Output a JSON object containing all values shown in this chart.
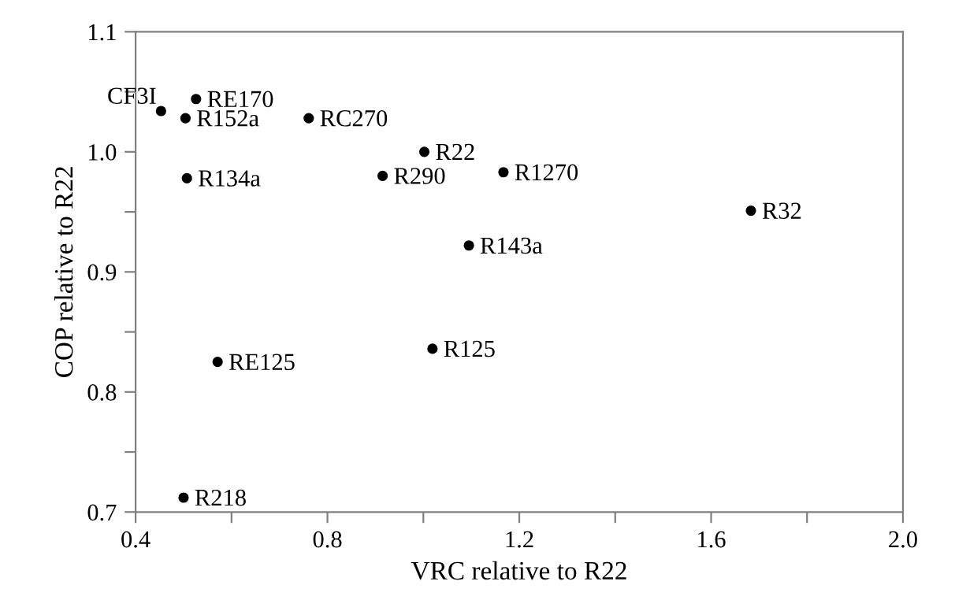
{
  "chart_data": {
    "type": "scatter",
    "xlabel": "VRC relative to R22",
    "ylabel": "COP relative to R22",
    "x": [
      0.453,
      0.526,
      0.504,
      0.761,
      1.002,
      0.507,
      0.915,
      1.167,
      1.095,
      1.683,
      1.019,
      0.571,
      0.5
    ],
    "series": [
      {
        "color": "#000000",
        "values": [
          1.034,
          1.044,
          1.028,
          1.028,
          1.0,
          0.978,
          0.98,
          0.983,
          0.922,
          0.951,
          0.836,
          0.825,
          0.712
        ]
      }
    ],
    "annotations": [
      {
        "text": "CF3I",
        "x": 0.453,
        "y": 1.034
      },
      {
        "text": "RE170",
        "x": 0.526,
        "y": 1.044
      },
      {
        "text": "R152a",
        "x": 0.504,
        "y": 1.028
      },
      {
        "text": "RC270",
        "x": 0.761,
        "y": 1.028
      },
      {
        "text": "R22",
        "x": 1.002,
        "y": 1.0
      },
      {
        "text": "R134a",
        "x": 0.507,
        "y": 0.978
      },
      {
        "text": "R290",
        "x": 0.915,
        "y": 0.98
      },
      {
        "text": "R1270",
        "x": 1.167,
        "y": 0.983
      },
      {
        "text": "R143a",
        "x": 1.095,
        "y": 0.922
      },
      {
        "text": "R32",
        "x": 1.683,
        "y": 0.951
      },
      {
        "text": "R125",
        "x": 1.019,
        "y": 0.836
      },
      {
        "text": "RE125",
        "x": 0.571,
        "y": 0.825
      },
      {
        "text": "R218",
        "x": 0.5,
        "y": 0.712
      }
    ],
    "xlim": [
      0.4,
      2.0
    ],
    "ylim": [
      0.7,
      1.1
    ],
    "xticks": [
      0.4,
      {
        "value": 0.6,
        "label": null
      },
      0.8,
      {
        "value": 1.0,
        "label": null
      },
      1.2,
      {
        "value": 1.4,
        "label": null
      },
      1.6,
      {
        "value": 1.8,
        "label": null
      },
      "2.0"
    ],
    "yticks": [
      0.7,
      {
        "value": 0.75,
        "label": null
      },
      0.8,
      {
        "value": 0.85,
        "label": null
      },
      0.9,
      {
        "value": 0.95,
        "label": null
      },
      "1.0",
      {
        "value": 1.05,
        "label": null
      },
      1.1
    ],
    "marker": "circle",
    "grid": false,
    "legend": false
  }
}
